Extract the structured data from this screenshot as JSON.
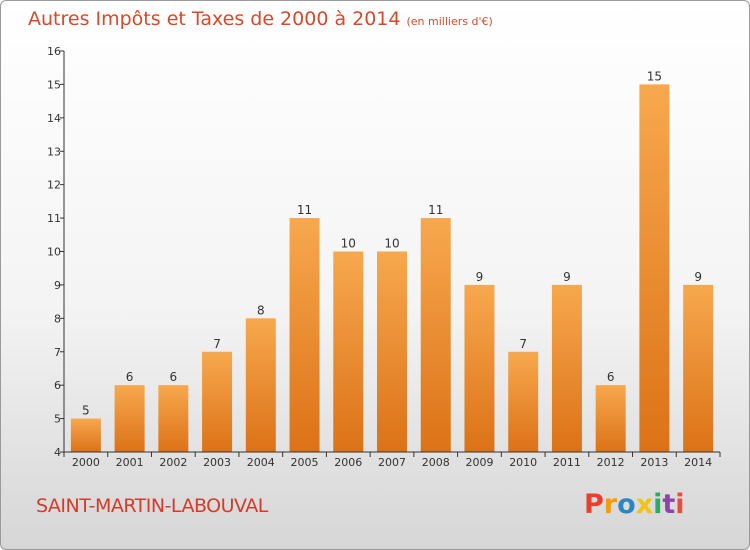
{
  "title": "Autres Impôts et Taxes de 2000 à 2014",
  "title_unit": "(en milliers d'€)",
  "city": "SAINT-MARTIN-LABOUVAL",
  "logo": {
    "text": "Proxiti",
    "colors": [
      "#e8402c",
      "#f39c12",
      "#2e86c1",
      "#f1c40f",
      "#27ae60",
      "#8e44ad",
      "#e74c3c"
    ]
  },
  "colors": {
    "bar_top": "#f7a84e",
    "bar_bottom": "#dc7217",
    "axis": "#333333",
    "title": "#d8482a"
  },
  "chart_data": {
    "type": "bar",
    "title": "Autres Impôts et Taxes de 2000 à 2014",
    "xlabel": "",
    "ylabel": "",
    "categories": [
      "2000",
      "2001",
      "2002",
      "2003",
      "2004",
      "2005",
      "2006",
      "2007",
      "2008",
      "2009",
      "2010",
      "2011",
      "2012",
      "2013",
      "2014"
    ],
    "values": [
      5,
      6,
      6,
      7,
      8,
      11,
      10,
      10,
      11,
      9,
      7,
      9,
      6,
      15,
      9
    ],
    "ylim": [
      4,
      16
    ],
    "yticks": [
      4,
      5,
      6,
      7,
      8,
      9,
      10,
      11,
      12,
      13,
      14,
      15,
      16
    ],
    "grid": false,
    "data_labels": true
  }
}
